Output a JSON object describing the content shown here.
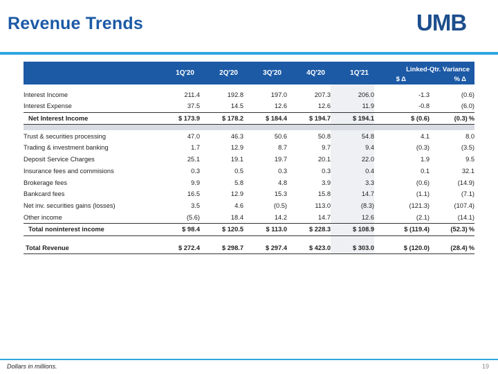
{
  "page": {
    "title": "Revenue Trends",
    "logo_text": "UMB",
    "footnote": "Dollars in millions.",
    "page_number": "19"
  },
  "table": {
    "columns": [
      "1Q'20",
      "2Q'20",
      "3Q'20",
      "4Q'20",
      "1Q'21"
    ],
    "variance_header": "Linked-Qtr. Variance",
    "variance_sub": [
      "$ Δ",
      "% Δ"
    ],
    "rows": {
      "interest_income": {
        "label": "Interest Income",
        "values": [
          "211.4",
          "192.8",
          "197.0",
          "207.3",
          "206.0"
        ],
        "var_dollar": "-1.3",
        "var_pct": "(0.6)"
      },
      "interest_expense": {
        "label": "Interest Expense",
        "values": [
          "37.5",
          "14.5",
          "12.6",
          "12.6",
          "11.9"
        ],
        "var_dollar": "-0.8",
        "var_pct": "(6.0)"
      },
      "net_interest_income": {
        "label": "Net Interest Income",
        "values": [
          "$ 173.9",
          "$ 178.2",
          "$ 184.4",
          "$ 194.7",
          "$ 194.1"
        ],
        "var_dollar": "$ (0.6)",
        "var_pct": "(0.3)",
        "pct_suffix": "%"
      },
      "trust": {
        "label": "Trust & securities processing",
        "values": [
          "47.0",
          "46.3",
          "50.6",
          "50.8",
          "54.8"
        ],
        "var_dollar": "4.1",
        "var_pct": "8.0"
      },
      "trading": {
        "label": "Trading & investment banking",
        "values": [
          "1.7",
          "12.9",
          "8.7",
          "9.7",
          "9.4"
        ],
        "var_dollar": "(0.3)",
        "var_pct": "(3.5)"
      },
      "deposit": {
        "label": "Deposit Service Charges",
        "values": [
          "25.1",
          "19.1",
          "19.7",
          "20.1",
          "22.0"
        ],
        "var_dollar": "1.9",
        "var_pct": "9.5"
      },
      "insurance": {
        "label": "Insurance fees and commisions",
        "values": [
          "0.3",
          "0.5",
          "0.3",
          "0.3",
          "0.4"
        ],
        "var_dollar": "0.1",
        "var_pct": "32.1"
      },
      "brokerage": {
        "label": "Brokerage fees",
        "values": [
          "9.9",
          "5.8",
          "4.8",
          "3.9",
          "3.3"
        ],
        "var_dollar": "(0.6)",
        "var_pct": "(14.9)"
      },
      "bankcard": {
        "label": "Bankcard fees",
        "values": [
          "16.5",
          "12.9",
          "15.3",
          "15.8",
          "14.7"
        ],
        "var_dollar": "(1.1)",
        "var_pct": "(7.1)"
      },
      "net_inv": {
        "label": "Net inv. securities gains (losses)",
        "values": [
          "3.5",
          "4.6",
          "(0.5)",
          "113.0",
          "(8.3)"
        ],
        "var_dollar": "(121.3)",
        "var_pct": "(107.4)"
      },
      "other": {
        "label": "Other income",
        "values": [
          "(5.6)",
          "18.4",
          "14.2",
          "14.7",
          "12.6"
        ],
        "var_dollar": "(2.1)",
        "var_pct": "(14.1)"
      },
      "total_nonint": {
        "label": "Total noninterest income",
        "values": [
          "$ 98.4",
          "$ 120.5",
          "$ 113.0",
          "$ 228.3",
          "$ 108.9"
        ],
        "var_dollar": "$ (119.4)",
        "var_pct": "(52.3)",
        "pct_suffix": "%"
      },
      "total_revenue": {
        "label": "Total Revenue",
        "values": [
          "$ 272.4",
          "$ 298.7",
          "$ 297.4",
          "$ 423.0",
          "$ 303.0"
        ],
        "var_dollar": "$ (120.0)",
        "var_pct": "(28.4)",
        "pct_suffix": "%"
      }
    }
  },
  "colors": {
    "title": "#1c5aa6",
    "header_bg": "#1c5aa6",
    "rule": "#2ea6e0",
    "highlight_col": "#eef0f3",
    "logo": "#1c4e8c"
  }
}
